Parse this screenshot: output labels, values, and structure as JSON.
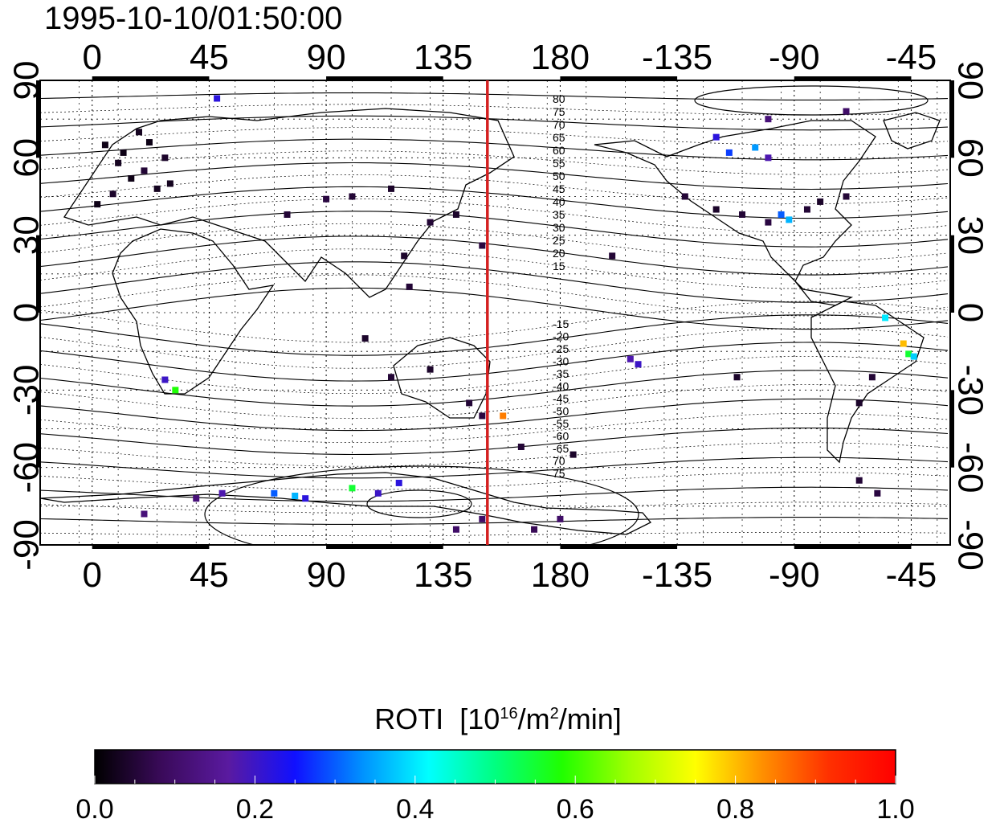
{
  "title": "1995-10-10/01:50:00",
  "map": {
    "x_ticks_top": [
      "0",
      "45",
      "90",
      "135",
      "180",
      "-135",
      "-90",
      "-45"
    ],
    "x_ticks_bottom": [
      "0",
      "45",
      "90",
      "135",
      "180",
      "-135",
      "-90",
      "-45"
    ],
    "y_ticks_left": [
      "90",
      "60",
      "30",
      "0",
      "-30",
      "-60",
      "-90"
    ],
    "y_ticks_right": [
      "90",
      "60",
      "30",
      "0",
      "-30",
      "-60",
      "-90"
    ],
    "lon_ticks": [
      0,
      45,
      90,
      135,
      180,
      225,
      270,
      315
    ],
    "lat_ticks": [
      90,
      60,
      30,
      0,
      -30,
      -60,
      -90
    ],
    "lon_range": [
      -20,
      330
    ],
    "lat_range": [
      -90,
      90
    ],
    "grid": true,
    "terminator_longitude": 152,
    "terminator_color": "#d42020",
    "contour_labels_north": [
      "80",
      "75",
      "70",
      "65",
      "60",
      "55",
      "50",
      "45",
      "40",
      "35",
      "30",
      "25",
      "20",
      "15"
    ],
    "contour_labels_south": [
      "-15",
      "-20",
      "-25",
      "-30",
      "-35",
      "-40",
      "-45",
      "-50",
      "-55",
      "-60",
      "-65",
      "70",
      "75"
    ]
  },
  "colorbar": {
    "label": "ROTI",
    "unit_base": "[10",
    "unit_exp": "16",
    "unit_mid": "/m",
    "unit_exp2": "2",
    "unit_end": "/min]",
    "ticks": [
      "0.0",
      "0.2",
      "0.4",
      "0.6",
      "0.8",
      "1.0"
    ],
    "min": 0.0,
    "max": 1.0,
    "colors": [
      "#000000",
      "#3a0a5a",
      "#5a1aa0",
      "#1010ff",
      "#0090ff",
      "#00ffff",
      "#00ff80",
      "#20ff00",
      "#a0ff00",
      "#ffff00",
      "#ff9000",
      "#ff3000",
      "#ff0000"
    ]
  },
  "chart_data": {
    "type": "heatmap",
    "title": "1995-10-10/01:50:00",
    "xlabel": "",
    "ylabel": "",
    "xlim": [
      -20,
      330
    ],
    "ylim": [
      -90,
      90
    ],
    "colorbar_label": "ROTI [10^16/m^2/min]",
    "clim": [
      0.0,
      1.0
    ],
    "points": [
      {
        "lon": 5,
        "lat": 65,
        "v": 0.02
      },
      {
        "lon": 10,
        "lat": 58,
        "v": 0.03
      },
      {
        "lon": 15,
        "lat": 52,
        "v": 0.02
      },
      {
        "lon": 20,
        "lat": 55,
        "v": 0.05
      },
      {
        "lon": 25,
        "lat": 48,
        "v": 0.03
      },
      {
        "lon": 8,
        "lat": 46,
        "v": 0.04
      },
      {
        "lon": 12,
        "lat": 62,
        "v": 0.02
      },
      {
        "lon": 18,
        "lat": 70,
        "v": 0.03
      },
      {
        "lon": 22,
        "lat": 66,
        "v": 0.02
      },
      {
        "lon": 28,
        "lat": 60,
        "v": 0.04
      },
      {
        "lon": 30,
        "lat": 50,
        "v": 0.03
      },
      {
        "lon": 2,
        "lat": 42,
        "v": 0.02
      },
      {
        "lon": 48,
        "lat": 83,
        "v": 0.22
      },
      {
        "lon": 28,
        "lat": -26,
        "v": 0.2
      },
      {
        "lon": 32,
        "lat": -30,
        "v": 0.58
      },
      {
        "lon": 75,
        "lat": 38,
        "v": 0.05
      },
      {
        "lon": 90,
        "lat": 44,
        "v": 0.06
      },
      {
        "lon": 100,
        "lat": 45,
        "v": 0.05
      },
      {
        "lon": 115,
        "lat": 48,
        "v": 0.04
      },
      {
        "lon": 130,
        "lat": 35,
        "v": 0.05
      },
      {
        "lon": 140,
        "lat": 38,
        "v": 0.04
      },
      {
        "lon": 120,
        "lat": 22,
        "v": 0.04
      },
      {
        "lon": 122,
        "lat": 10,
        "v": 0.05
      },
      {
        "lon": 150,
        "lat": 26,
        "v": 0.06
      },
      {
        "lon": 105,
        "lat": -10,
        "v": 0.04
      },
      {
        "lon": 115,
        "lat": -25,
        "v": 0.05
      },
      {
        "lon": 130,
        "lat": -22,
        "v": 0.04
      },
      {
        "lon": 145,
        "lat": -35,
        "v": 0.05
      },
      {
        "lon": 150,
        "lat": -40,
        "v": 0.06
      },
      {
        "lon": 158,
        "lat": -40,
        "v": 0.85
      },
      {
        "lon": 165,
        "lat": -52,
        "v": 0.05
      },
      {
        "lon": 185,
        "lat": -55,
        "v": 0.04
      },
      {
        "lon": 200,
        "lat": 22,
        "v": 0.05
      },
      {
        "lon": 207,
        "lat": -18,
        "v": 0.18
      },
      {
        "lon": 210,
        "lat": -20,
        "v": 0.2
      },
      {
        "lon": 248,
        "lat": -25,
        "v": 0.04
      },
      {
        "lon": 228,
        "lat": 45,
        "v": 0.05
      },
      {
        "lon": 240,
        "lat": 40,
        "v": 0.04
      },
      {
        "lon": 250,
        "lat": 38,
        "v": 0.05
      },
      {
        "lon": 260,
        "lat": 35,
        "v": 0.06
      },
      {
        "lon": 265,
        "lat": 38,
        "v": 0.3
      },
      {
        "lon": 268,
        "lat": 36,
        "v": 0.36
      },
      {
        "lon": 275,
        "lat": 40,
        "v": 0.05
      },
      {
        "lon": 280,
        "lat": 43,
        "v": 0.04
      },
      {
        "lon": 290,
        "lat": 45,
        "v": 0.05
      },
      {
        "lon": 245,
        "lat": 62,
        "v": 0.28
      },
      {
        "lon": 255,
        "lat": 64,
        "v": 0.34
      },
      {
        "lon": 260,
        "lat": 60,
        "v": 0.18
      },
      {
        "lon": 240,
        "lat": 68,
        "v": 0.22
      },
      {
        "lon": 305,
        "lat": -2,
        "v": 0.4
      },
      {
        "lon": 312,
        "lat": -12,
        "v": 0.8
      },
      {
        "lon": 314,
        "lat": -16,
        "v": 0.55
      },
      {
        "lon": 316,
        "lat": -17,
        "v": 0.38
      },
      {
        "lon": 300,
        "lat": -25,
        "v": 0.05
      },
      {
        "lon": 295,
        "lat": -35,
        "v": 0.04
      },
      {
        "lon": 295,
        "lat": -65,
        "v": 0.05
      },
      {
        "lon": 302,
        "lat": -70,
        "v": 0.06
      },
      {
        "lon": 70,
        "lat": -70,
        "v": 0.3
      },
      {
        "lon": 78,
        "lat": -71,
        "v": 0.36
      },
      {
        "lon": 82,
        "lat": -72,
        "v": 0.22
      },
      {
        "lon": 100,
        "lat": -68,
        "v": 0.55
      },
      {
        "lon": 110,
        "lat": -70,
        "v": 0.2
      },
      {
        "lon": 118,
        "lat": -66,
        "v": 0.22
      },
      {
        "lon": 40,
        "lat": -72,
        "v": 0.12
      },
      {
        "lon": 50,
        "lat": -70,
        "v": 0.18
      },
      {
        "lon": 20,
        "lat": -78,
        "v": 0.12
      },
      {
        "lon": 150,
        "lat": -80,
        "v": 0.1
      },
      {
        "lon": 170,
        "lat": -84,
        "v": 0.08
      },
      {
        "lon": 180,
        "lat": -80,
        "v": 0.1
      },
      {
        "lon": 140,
        "lat": -84,
        "v": 0.1
      },
      {
        "lon": 260,
        "lat": 75,
        "v": 0.12
      },
      {
        "lon": 290,
        "lat": 78,
        "v": 0.1
      }
    ]
  }
}
